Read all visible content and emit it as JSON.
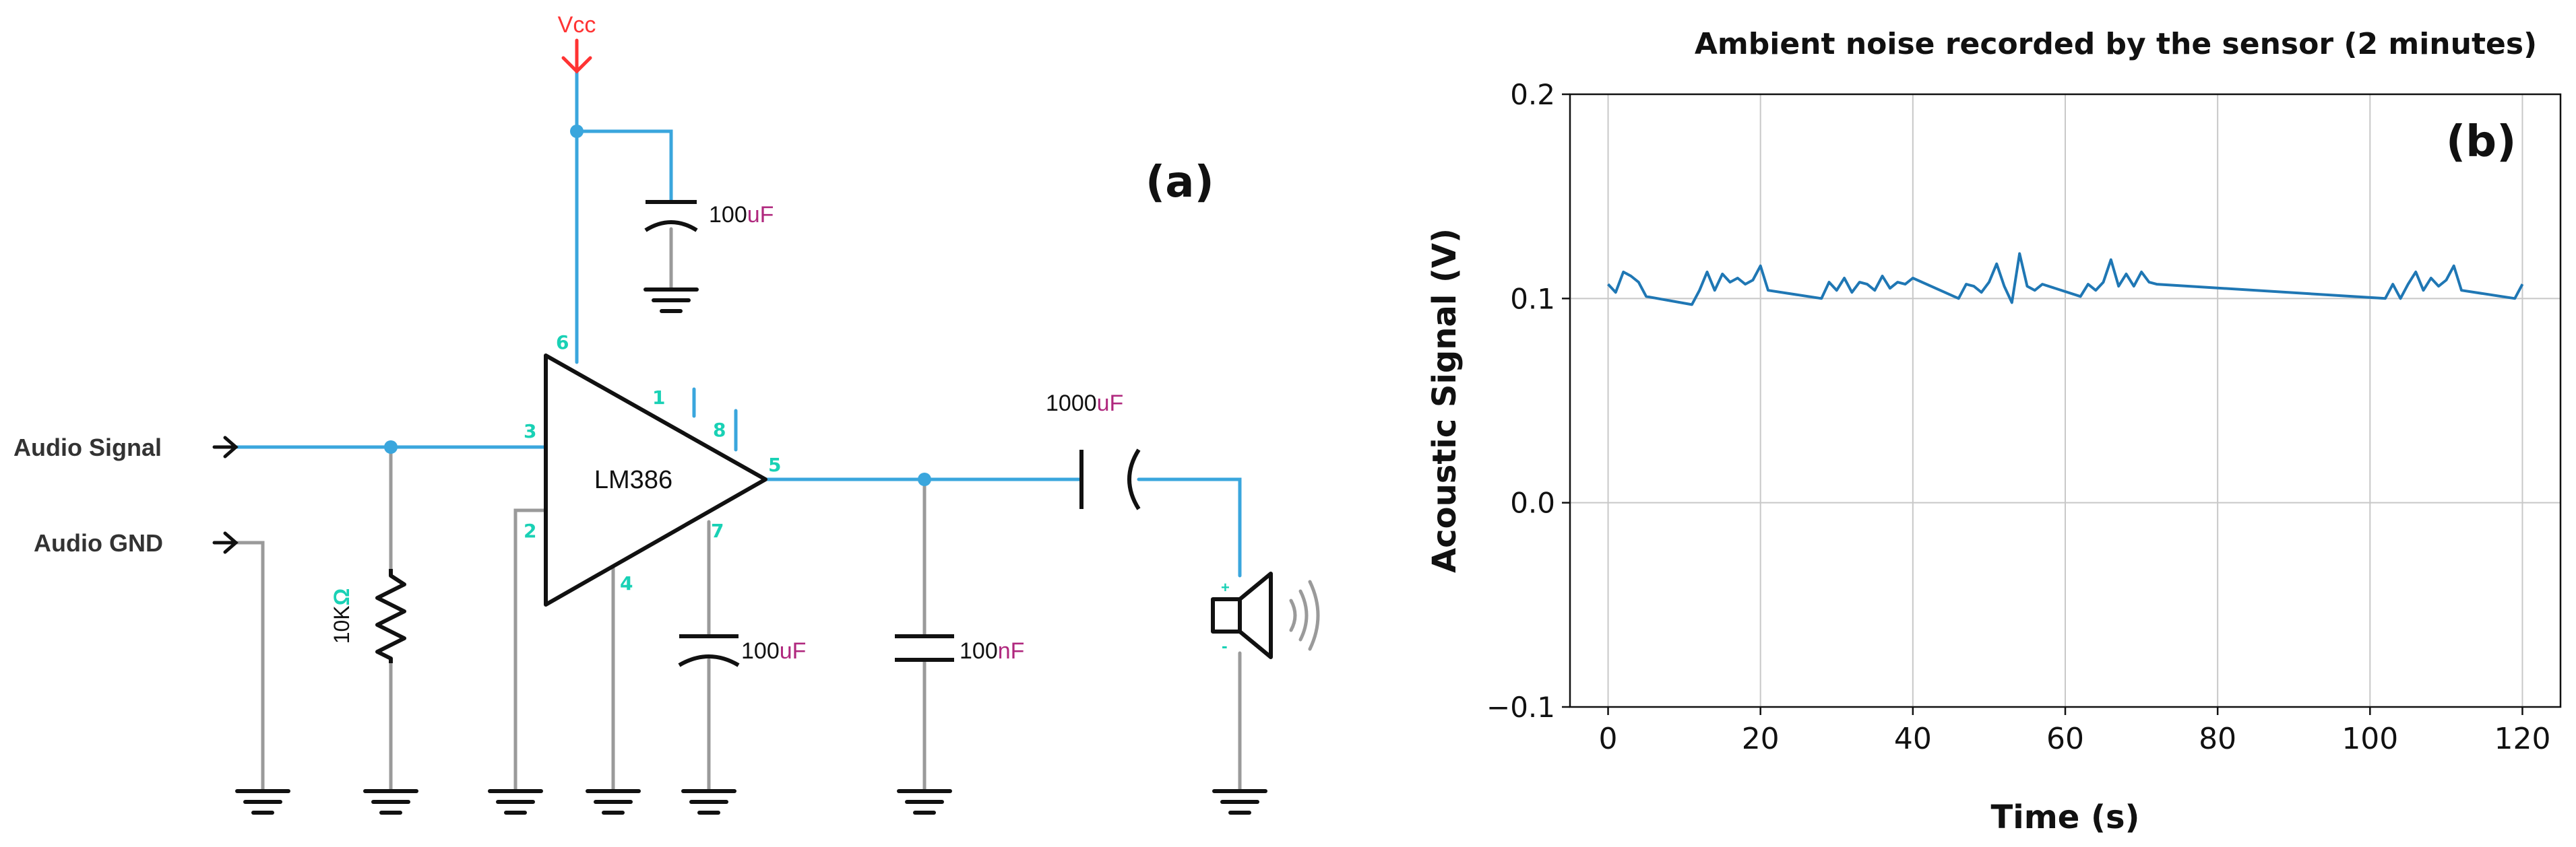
{
  "circuit": {
    "panel_label": "(a)",
    "vcc_label": "Vcc",
    "chip_label": "LM386",
    "audio_signal_label": "Audio Signal",
    "audio_gnd_label": "Audio GND",
    "resistor": {
      "value": "10K",
      "unit": "Ω"
    },
    "cap_supply": {
      "value": "100",
      "unit": "uF"
    },
    "cap_pin7": {
      "value": "100",
      "unit": "uF"
    },
    "cap_filter": {
      "value": "100",
      "unit": "nF"
    },
    "cap_output": {
      "value": "1000",
      "unit": "uF"
    },
    "pins": {
      "p1": "1",
      "p2": "2",
      "p3": "3",
      "p4": "4",
      "p5": "5",
      "p6": "6",
      "p7": "7",
      "p8": "8"
    },
    "speaker_plus": "+",
    "speaker_minus": "-",
    "colors": {
      "wire": "#3aa6dd",
      "pin": "#19d1b5",
      "vcc": "#ff3333",
      "unit": "#b0287e",
      "ground": "#9a9a9a",
      "black": "#111111"
    }
  },
  "chart_data": {
    "type": "line",
    "panel_label": "(b)",
    "title": "Ambient noise recorded by the sensor (2 minutes)",
    "xlabel": "Time (s)",
    "ylabel": "Acoustic Signal (V)",
    "xlim": [
      -5,
      125
    ],
    "ylim": [
      -0.1,
      0.2
    ],
    "xticks": [
      0,
      20,
      40,
      60,
      80,
      100,
      120
    ],
    "yticks": [
      -0.1,
      0.0,
      0.1,
      0.2
    ],
    "ytick_labels": [
      "−0.1",
      "0.0",
      "0.1",
      "0.2"
    ],
    "grid": true,
    "line_color": "#1f77b4",
    "series": [
      {
        "x": [
          0,
          1,
          2,
          3,
          4,
          5,
          11,
          12,
          13,
          14,
          15,
          16,
          17,
          18,
          19,
          20,
          21,
          28,
          29,
          30,
          31,
          32,
          33,
          34,
          35,
          36,
          37,
          38,
          39,
          40,
          46,
          47,
          48,
          49,
          50,
          51,
          52,
          53,
          54,
          55,
          56,
          57,
          62,
          63,
          64,
          65,
          66,
          67,
          68,
          69,
          70,
          71,
          72,
          102,
          103,
          104,
          105,
          106,
          107,
          108,
          109,
          110,
          111,
          112,
          119,
          120
        ],
        "y": [
          0.107,
          0.103,
          0.113,
          0.111,
          0.108,
          0.101,
          0.097,
          0.104,
          0.113,
          0.104,
          0.112,
          0.108,
          0.11,
          0.107,
          0.109,
          0.116,
          0.104,
          0.1,
          0.108,
          0.104,
          0.11,
          0.103,
          0.108,
          0.107,
          0.104,
          0.111,
          0.105,
          0.108,
          0.107,
          0.11,
          0.1,
          0.107,
          0.106,
          0.103,
          0.108,
          0.117,
          0.106,
          0.098,
          0.122,
          0.106,
          0.104,
          0.107,
          0.101,
          0.107,
          0.104,
          0.108,
          0.119,
          0.106,
          0.112,
          0.106,
          0.113,
          0.108,
          0.107,
          0.1,
          0.107,
          0.1,
          0.107,
          0.113,
          0.104,
          0.11,
          0.106,
          0.109,
          0.116,
          0.104,
          0.1,
          0.107
        ]
      }
    ]
  }
}
